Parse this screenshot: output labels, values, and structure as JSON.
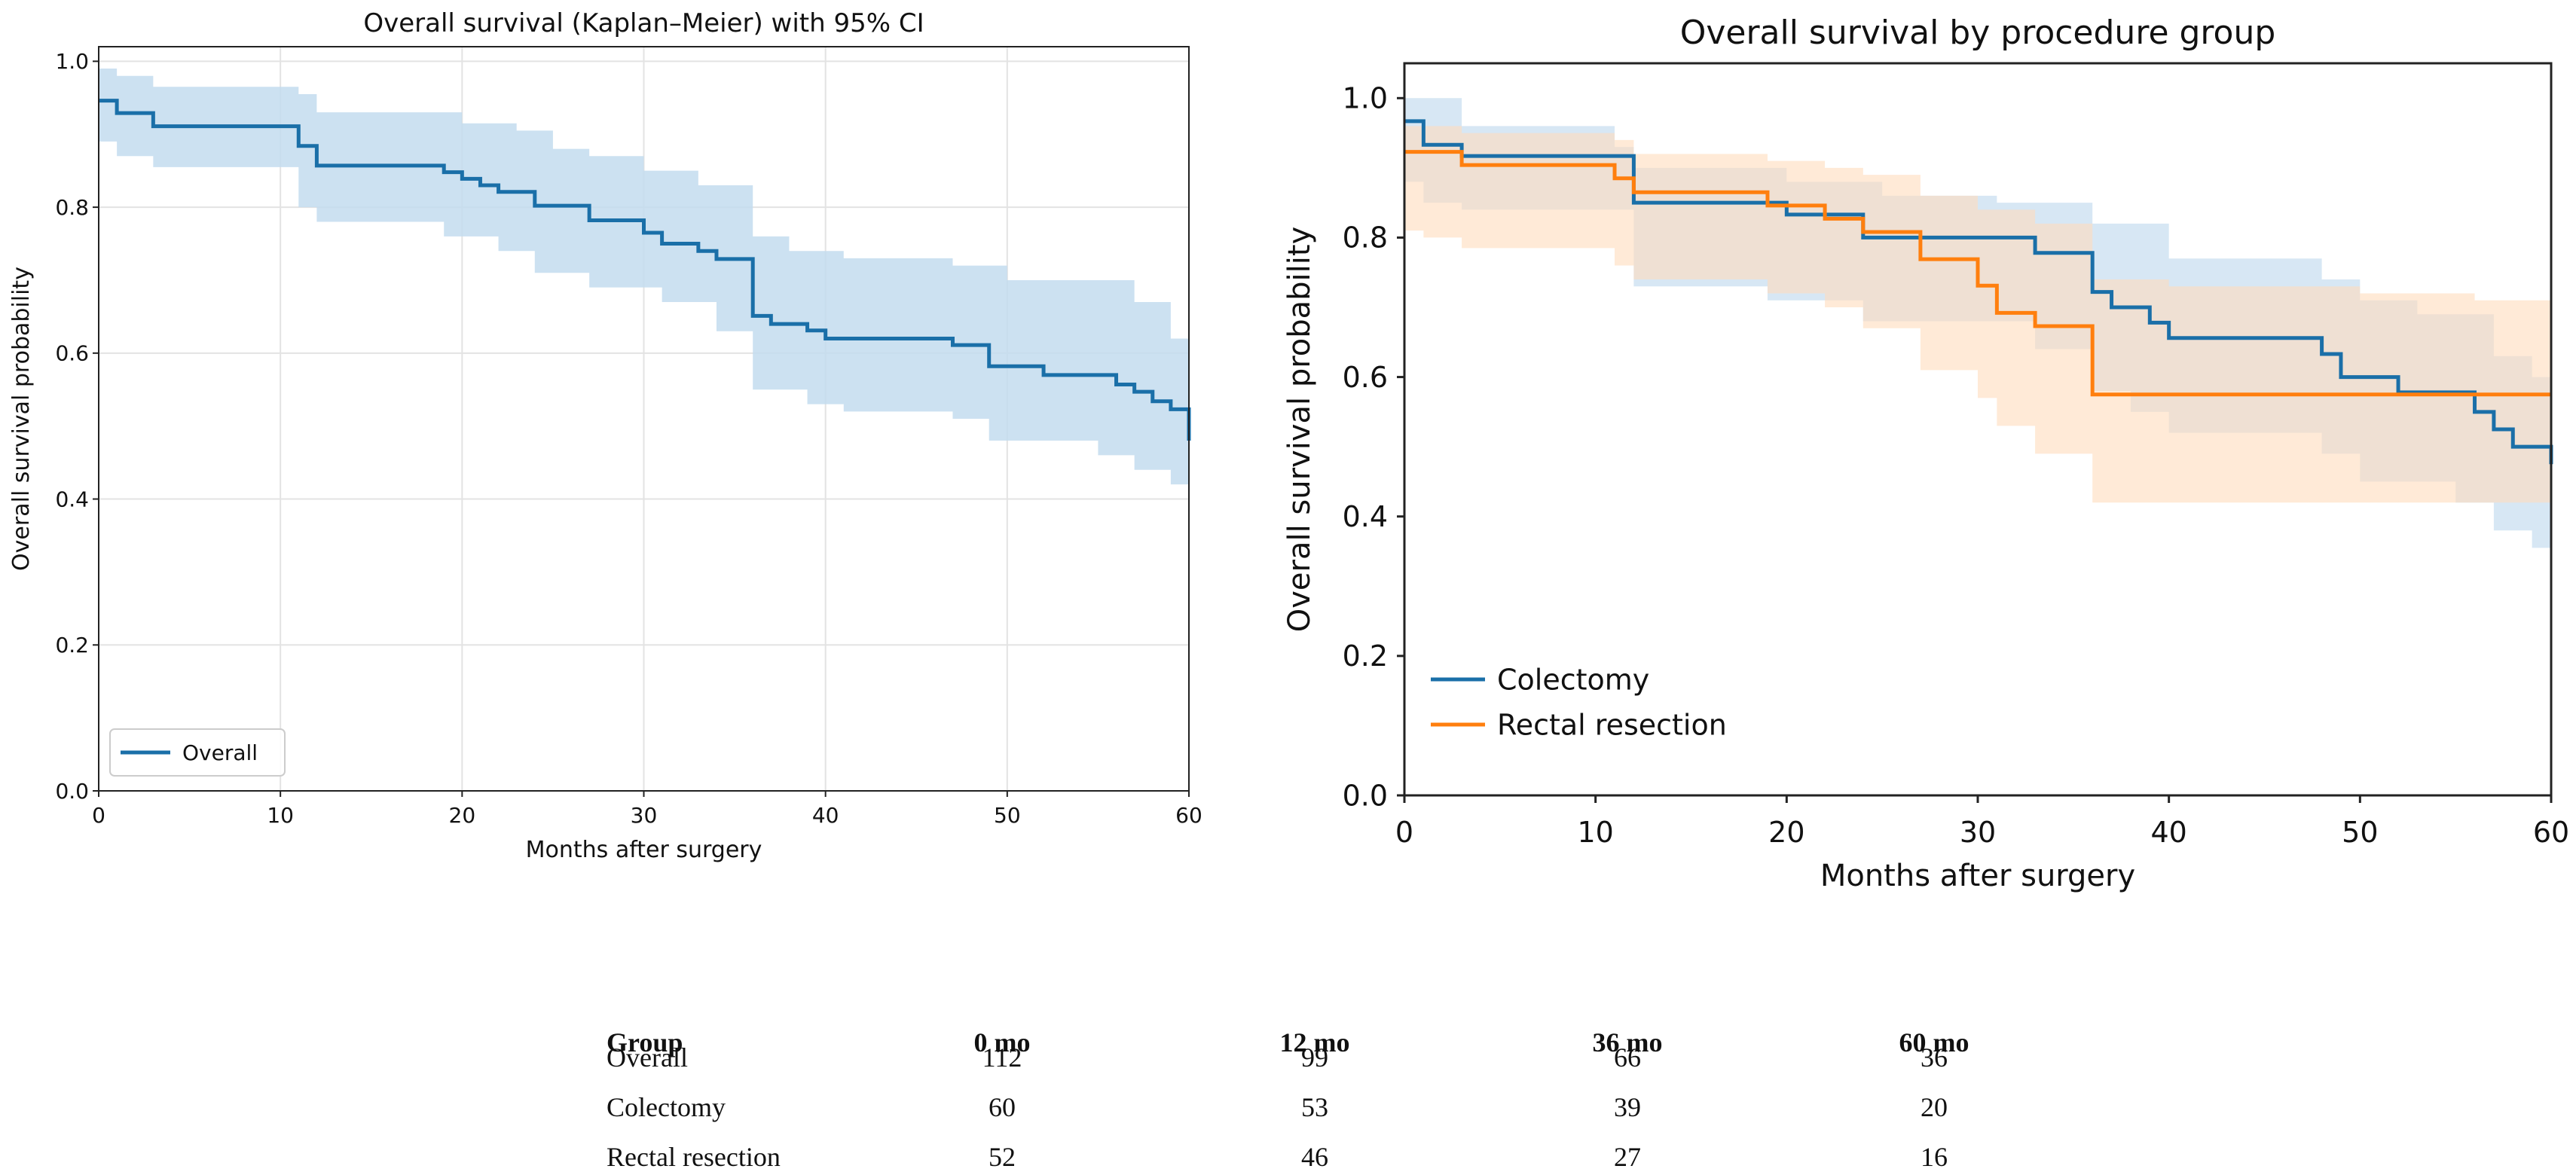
{
  "colors": {
    "blue": "#1f77b4",
    "blue_line": "#1a6fa8",
    "blue_ci": "#c3dcee",
    "orange": "#ff7f0e",
    "orange_ci": "#ffdcbc",
    "overlap_ci": "#d2c4ba",
    "grid": "#e3e3e3",
    "axis": "#222222",
    "text": "#111111"
  },
  "chart_data": [
    {
      "type": "line",
      "title": "Overall survival (Kaplan–Meier) with 95% CI",
      "xlabel": "Months after surgery",
      "ylabel": "Overall survival probability",
      "xlim": [
        0,
        60
      ],
      "ylim": [
        0,
        1.02
      ],
      "xticks": [
        0,
        10,
        20,
        30,
        40,
        50,
        60
      ],
      "xtick_labels": [
        "0",
        "10",
        "20",
        "30",
        "40",
        "50",
        "60"
      ],
      "yticks": [
        0,
        0.2,
        0.4,
        0.6,
        0.8,
        1.0
      ],
      "ytick_labels": [
        "0.0",
        "0.2",
        "0.4",
        "0.6",
        "0.8",
        "1.0"
      ],
      "grid": true,
      "legend": "lower-left",
      "series": [
        {
          "name": "Overall",
          "color": "#1a6fa8",
          "ci_color": "#c3dcee",
          "steps": [
            [
              0,
              0.946
            ],
            [
              1,
              0.929
            ],
            [
              3,
              0.911
            ],
            [
              11,
              0.884
            ],
            [
              12,
              0.857
            ],
            [
              19,
              0.848
            ],
            [
              20,
              0.839
            ],
            [
              21,
              0.83
            ],
            [
              22,
              0.821
            ],
            [
              24,
              0.802
            ],
            [
              27,
              0.782
            ],
            [
              30,
              0.765
            ],
            [
              31,
              0.75
            ],
            [
              33,
              0.74
            ],
            [
              34,
              0.729
            ],
            [
              36,
              0.651
            ],
            [
              37,
              0.64
            ],
            [
              39,
              0.631
            ],
            [
              40,
              0.62
            ],
            [
              47,
              0.611
            ],
            [
              49,
              0.582
            ],
            [
              52,
              0.57
            ],
            [
              56,
              0.557
            ],
            [
              57,
              0.547
            ],
            [
              58,
              0.534
            ],
            [
              59,
              0.523
            ],
            [
              60,
              0.48
            ]
          ],
          "ci_upper": [
            [
              0,
              0.99
            ],
            [
              1,
              0.98
            ],
            [
              3,
              0.965
            ],
            [
              11,
              0.955
            ],
            [
              12,
              0.93
            ],
            [
              20,
              0.915
            ],
            [
              23,
              0.905
            ],
            [
              25,
              0.88
            ],
            [
              27,
              0.87
            ],
            [
              30,
              0.85
            ],
            [
              33,
              0.83
            ],
            [
              36,
              0.76
            ],
            [
              38,
              0.74
            ],
            [
              41,
              0.73
            ],
            [
              47,
              0.72
            ],
            [
              50,
              0.7
            ],
            [
              57,
              0.67
            ],
            [
              59,
              0.62
            ],
            [
              60,
              0.62
            ]
          ],
          "ci_lower": [
            [
              0,
              0.89
            ],
            [
              1,
              0.87
            ],
            [
              3,
              0.855
            ],
            [
              11,
              0.8
            ],
            [
              12,
              0.78
            ],
            [
              19,
              0.76
            ],
            [
              22,
              0.74
            ],
            [
              24,
              0.71
            ],
            [
              27,
              0.69
            ],
            [
              31,
              0.67
            ],
            [
              34,
              0.63
            ],
            [
              36,
              0.55
            ],
            [
              39,
              0.53
            ],
            [
              41,
              0.52
            ],
            [
              47,
              0.51
            ],
            [
              49,
              0.48
            ],
            [
              55,
              0.46
            ],
            [
              57,
              0.44
            ],
            [
              59,
              0.42
            ],
            [
              60,
              0.41
            ]
          ]
        }
      ]
    },
    {
      "type": "line",
      "title": "Overall survival by procedure group",
      "xlabel": "Months after surgery",
      "ylabel": "Overall survival probability",
      "xlim": [
        0,
        60
      ],
      "ylim": [
        0,
        1.05
      ],
      "xticks": [
        0,
        10,
        20,
        30,
        40,
        50,
        60
      ],
      "xtick_labels": [
        "0",
        "10",
        "20",
        "30",
        "40",
        "50",
        "60"
      ],
      "yticks": [
        0,
        0.2,
        0.4,
        0.6,
        0.8,
        1.0
      ],
      "ytick_labels": [
        "0.0",
        "0.2",
        "0.4",
        "0.6",
        "0.8",
        "1.0"
      ],
      "grid": false,
      "legend": "lower-left",
      "series": [
        {
          "name": "Colectomy",
          "color": "#1a6fa8",
          "ci_color": "#bcd7ec",
          "steps": [
            [
              0,
              0.967
            ],
            [
              1,
              0.933
            ],
            [
              3,
              0.917
            ],
            [
              12,
              0.85
            ],
            [
              20,
              0.833
            ],
            [
              24,
              0.8
            ],
            [
              33,
              0.778
            ],
            [
              36,
              0.722
            ],
            [
              37,
              0.7
            ],
            [
              39,
              0.678
            ],
            [
              40,
              0.656
            ],
            [
              48,
              0.633
            ],
            [
              49,
              0.6
            ],
            [
              52,
              0.578
            ],
            [
              56,
              0.55
            ],
            [
              57,
              0.525
            ],
            [
              58,
              0.5
            ],
            [
              60,
              0.475
            ]
          ],
          "ci_upper": [
            [
              0,
              1.0
            ],
            [
              3,
              0.96
            ],
            [
              11,
              0.93
            ],
            [
              12,
              0.9
            ],
            [
              20,
              0.88
            ],
            [
              25,
              0.86
            ],
            [
              31,
              0.85
            ],
            [
              36,
              0.82
            ],
            [
              40,
              0.77
            ],
            [
              48,
              0.74
            ],
            [
              50,
              0.71
            ],
            [
              53,
              0.69
            ],
            [
              57,
              0.63
            ],
            [
              59,
              0.6
            ],
            [
              60,
              0.6
            ]
          ],
          "ci_lower": [
            [
              0,
              0.88
            ],
            [
              1,
              0.85
            ],
            [
              3,
              0.84
            ],
            [
              12,
              0.73
            ],
            [
              19,
              0.71
            ],
            [
              24,
              0.68
            ],
            [
              33,
              0.64
            ],
            [
              36,
              0.58
            ],
            [
              38,
              0.55
            ],
            [
              40,
              0.52
            ],
            [
              48,
              0.49
            ],
            [
              50,
              0.45
            ],
            [
              55,
              0.42
            ],
            [
              57,
              0.38
            ],
            [
              59,
              0.355
            ],
            [
              60,
              0.355
            ]
          ]
        },
        {
          "name": "Rectal resection",
          "color": "#ff7f0e",
          "ci_color": "#ffdcbc",
          "steps": [
            [
              0,
              0.923
            ],
            [
              3,
              0.904
            ],
            [
              11,
              0.885
            ],
            [
              12,
              0.865
            ],
            [
              19,
              0.846
            ],
            [
              22,
              0.827
            ],
            [
              24,
              0.808
            ],
            [
              27,
              0.769
            ],
            [
              30,
              0.731
            ],
            [
              31,
              0.692
            ],
            [
              33,
              0.673
            ],
            [
              36,
              0.575
            ],
            [
              60,
              0.575
            ]
          ],
          "ci_upper": [
            [
              0,
              0.96
            ],
            [
              3,
              0.95
            ],
            [
              11,
              0.94
            ],
            [
              12,
              0.92
            ],
            [
              19,
              0.91
            ],
            [
              22,
              0.9
            ],
            [
              24,
              0.89
            ],
            [
              27,
              0.86
            ],
            [
              30,
              0.84
            ],
            [
              33,
              0.82
            ],
            [
              36,
              0.74
            ],
            [
              40,
              0.73
            ],
            [
              50,
              0.72
            ],
            [
              56,
              0.71
            ],
            [
              60,
              0.7
            ]
          ],
          "ci_lower": [
            [
              0,
              0.81
            ],
            [
              1,
              0.8
            ],
            [
              3,
              0.785
            ],
            [
              11,
              0.76
            ],
            [
              12,
              0.74
            ],
            [
              19,
              0.72
            ],
            [
              22,
              0.7
            ],
            [
              24,
              0.67
            ],
            [
              27,
              0.61
            ],
            [
              30,
              0.57
            ],
            [
              31,
              0.53
            ],
            [
              33,
              0.49
            ],
            [
              36,
              0.42
            ],
            [
              60,
              0.42
            ]
          ]
        }
      ]
    }
  ],
  "risk_table": {
    "headers": [
      "Group",
      "0 mo",
      "12 mo",
      "36 mo",
      "60 mo"
    ],
    "rows": [
      {
        "group": "Overall",
        "values": [
          "112",
          "99",
          "66",
          "36"
        ]
      },
      {
        "group": "Colectomy",
        "values": [
          "60",
          "53",
          "39",
          "20"
        ]
      },
      {
        "group": "Rectal resection",
        "values": [
          "52",
          "46",
          "27",
          "16"
        ]
      }
    ]
  }
}
